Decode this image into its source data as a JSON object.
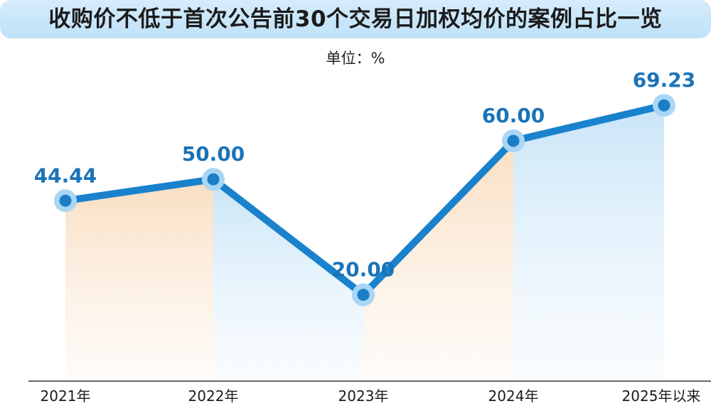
{
  "title": "收购价不低于首次公告前30个交易日加权均价的案例占比一览",
  "unit_label": "单位：%",
  "colors": {
    "line": "#1a82cc",
    "marker_inner": "#1b7ec6",
    "marker_halo": "#a9d6f4",
    "label": "#1a73b8",
    "fill_warm": "#fbe3c8",
    "fill_cool": "#cfe7f8",
    "title_bg": "#cde8fa"
  },
  "chart_data": {
    "type": "line",
    "title": "收购价不低于首次公告前30个交易日加权均价的案例占比一览",
    "ylabel": "单位：%",
    "categories": [
      "2021年",
      "2022年",
      "2023年",
      "2024年",
      "2025年以来"
    ],
    "series": [
      {
        "values": [
          44.44,
          50.0,
          20.0,
          60.0,
          69.23
        ],
        "labels": [
          "44.44",
          "50.00",
          "20.00",
          "60.00",
          "69.23"
        ]
      }
    ],
    "grid": false,
    "legend": "none"
  }
}
